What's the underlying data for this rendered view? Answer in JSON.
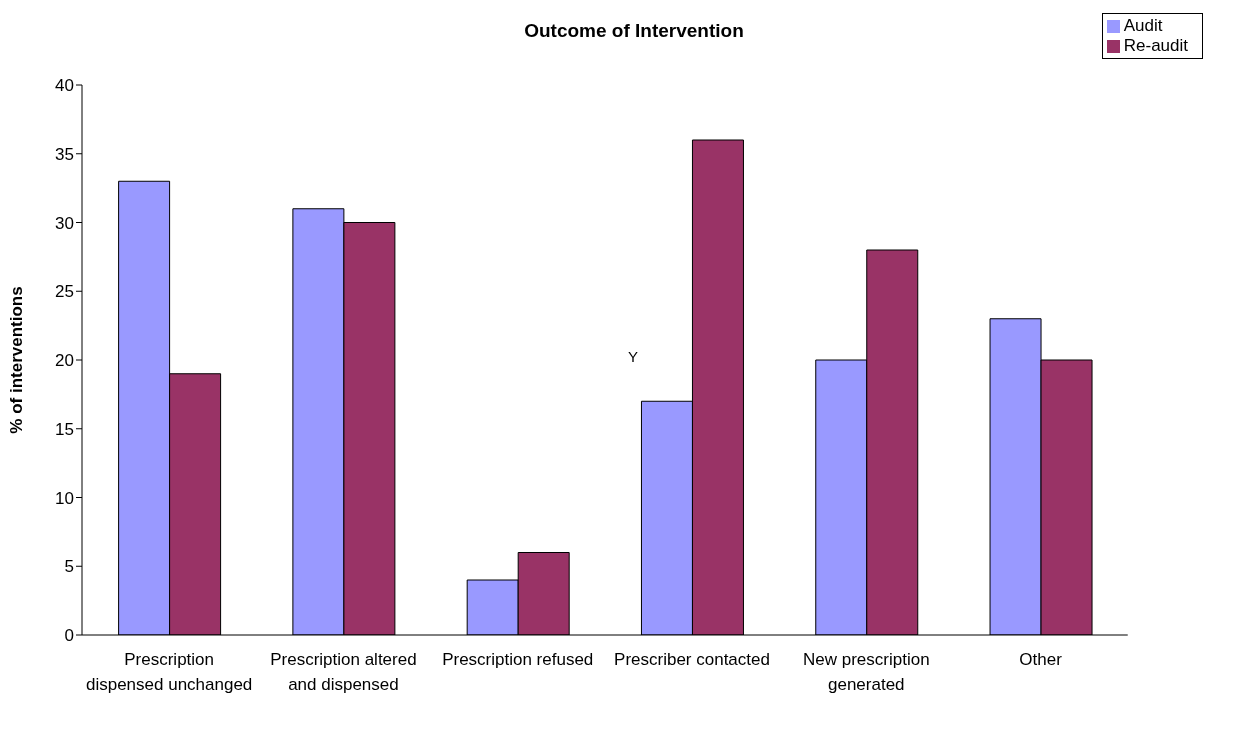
{
  "chart_data": {
    "type": "bar",
    "title": "Outcome of Intervention",
    "ylabel": "% of interventions",
    "categories": [
      "Prescription dispensed unchanged",
      "Prescription altered and dispensed",
      "Prescription refused",
      "Prescriber contacted",
      "New prescription generated",
      "Other"
    ],
    "series": [
      {
        "name": "Audit",
        "color": "#9999ff",
        "values": [
          33,
          31,
          4,
          17,
          20,
          23
        ]
      },
      {
        "name": "Re-audit",
        "color": "#993366",
        "values": [
          19,
          30,
          6,
          36,
          28,
          20
        ]
      }
    ],
    "ylim": [
      0,
      40
    ],
    "yticks": [
      0,
      5,
      10,
      15,
      20,
      25,
      30,
      35,
      40
    ],
    "legend": "top right",
    "annotations": [
      "Y"
    ]
  }
}
